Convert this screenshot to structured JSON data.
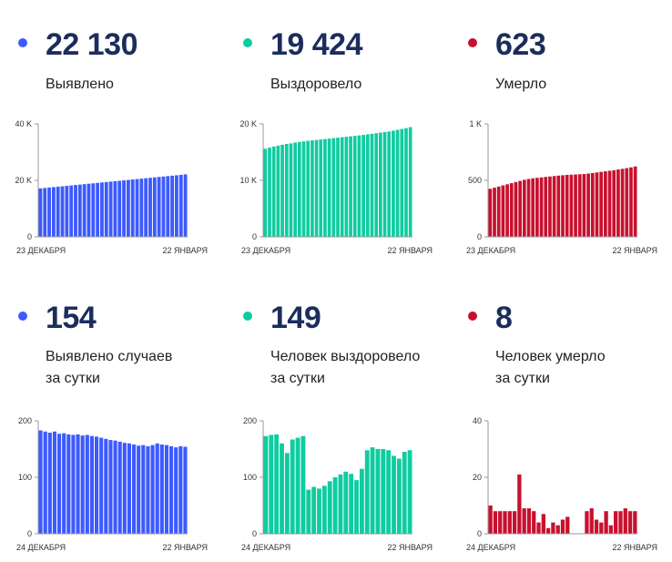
{
  "panels": [
    {
      "value": "22 130",
      "label": "Выявлено",
      "color": "#3d5afe",
      "chart_data": {
        "type": "bar",
        "ylim": [
          0,
          40000
        ],
        "y_ticks": [
          {
            "v": 0,
            "label": "0"
          },
          {
            "v": 20000,
            "label": "20 K"
          },
          {
            "v": 40000,
            "label": "40 K"
          }
        ],
        "x_labels": [
          "23 ДЕКАБРЯ",
          "22 ЯНВАРЯ"
        ],
        "values": [
          17150,
          17300,
          17450,
          17600,
          17750,
          17900,
          18050,
          18200,
          18350,
          18500,
          18650,
          18800,
          18950,
          19100,
          19250,
          19400,
          19550,
          19700,
          19850,
          20000,
          20150,
          20300,
          20450,
          20600,
          20750,
          20900,
          21050,
          21200,
          21350,
          21500,
          21650,
          21800,
          21960,
          22130
        ]
      }
    },
    {
      "value": "19 424",
      "label": "Выздоровело",
      "color": "#0fcca0",
      "chart_data": {
        "type": "bar",
        "ylim": [
          0,
          20000
        ],
        "y_ticks": [
          {
            "v": 0,
            "label": "0"
          },
          {
            "v": 10000,
            "label": "10 K"
          },
          {
            "v": 20000,
            "label": "20 K"
          }
        ],
        "x_labels": [
          "23 ДЕКАБРЯ",
          "22 ЯНВАРЯ"
        ],
        "values": [
          15600,
          15800,
          16000,
          16150,
          16300,
          16450,
          16550,
          16700,
          16800,
          16900,
          17000,
          17080,
          17160,
          17240,
          17320,
          17400,
          17480,
          17560,
          17640,
          17720,
          17800,
          17880,
          17960,
          18050,
          18150,
          18250,
          18350,
          18450,
          18550,
          18650,
          18800,
          18950,
          19100,
          19250,
          19424
        ]
      }
    },
    {
      "value": "623",
      "label": "Умерло",
      "color": "#c8102e",
      "chart_data": {
        "type": "bar",
        "ylim": [
          0,
          1000
        ],
        "y_ticks": [
          {
            "v": 0,
            "label": "0"
          },
          {
            "v": 500,
            "label": "500"
          },
          {
            "v": 1000,
            "label": "1 K"
          }
        ],
        "x_labels": [
          "23 ДЕКАБРЯ",
          "22 ЯНВАРЯ"
        ],
        "values": [
          425,
          435,
          445,
          455,
          465,
          475,
          485,
          495,
          505,
          512,
          518,
          522,
          526,
          530,
          534,
          538,
          542,
          545,
          548,
          550,
          552,
          554,
          556,
          560,
          565,
          570,
          575,
          580,
          585,
          590,
          596,
          602,
          608,
          615,
          623
        ]
      }
    },
    {
      "value": "154",
      "label": "Выявлено случаев\nза сутки",
      "color": "#3d5afe",
      "chart_data": {
        "type": "bar",
        "ylim": [
          0,
          200
        ],
        "y_ticks": [
          {
            "v": 0,
            "label": "0"
          },
          {
            "v": 100,
            "label": "100"
          },
          {
            "v": 200,
            "label": "200"
          }
        ],
        "x_labels": [
          "24 ДЕКАБРЯ",
          "22 ЯНВАРЯ"
        ],
        "values": [
          183,
          181,
          179,
          181,
          177,
          178,
          176,
          175,
          176,
          174,
          175,
          173,
          172,
          170,
          168,
          166,
          165,
          163,
          161,
          160,
          158,
          156,
          157,
          155,
          157,
          160,
          158,
          157,
          155,
          153,
          155,
          154
        ]
      }
    },
    {
      "value": "149",
      "label": "Человек выздоровело\nза сутки",
      "color": "#0fcca0",
      "chart_data": {
        "type": "bar",
        "ylim": [
          0,
          200
        ],
        "y_ticks": [
          {
            "v": 0,
            "label": "0"
          },
          {
            "v": 100,
            "label": "100"
          },
          {
            "v": 200,
            "label": "200"
          }
        ],
        "x_labels": [
          "24 ДЕКАБРЯ",
          "22 ЯНВАРЯ"
        ],
        "values": [
          173,
          175,
          176,
          160,
          143,
          167,
          170,
          173,
          78,
          83,
          80,
          85,
          93,
          100,
          105,
          110,
          106,
          95,
          115,
          148,
          153,
          150,
          150,
          148,
          138,
          133,
          145,
          148
        ]
      }
    },
    {
      "value": "8",
      "label": "Человек умерло\nза сутки",
      "color": "#c8102e",
      "chart_data": {
        "type": "bar",
        "ylim": [
          0,
          40
        ],
        "y_ticks": [
          {
            "v": 0,
            "label": "0"
          },
          {
            "v": 20,
            "label": "20"
          },
          {
            "v": 40,
            "label": "40"
          }
        ],
        "x_labels": [
          "24 ДЕКАБРЯ",
          "22 ЯНВАРЯ"
        ],
        "values": [
          10,
          8,
          8,
          8,
          8,
          8,
          21,
          9,
          9,
          8,
          4,
          7,
          2,
          4,
          3,
          5,
          6,
          0,
          0,
          0,
          8,
          9,
          5,
          4,
          8,
          3,
          8,
          8,
          9,
          8,
          8
        ]
      }
    }
  ]
}
